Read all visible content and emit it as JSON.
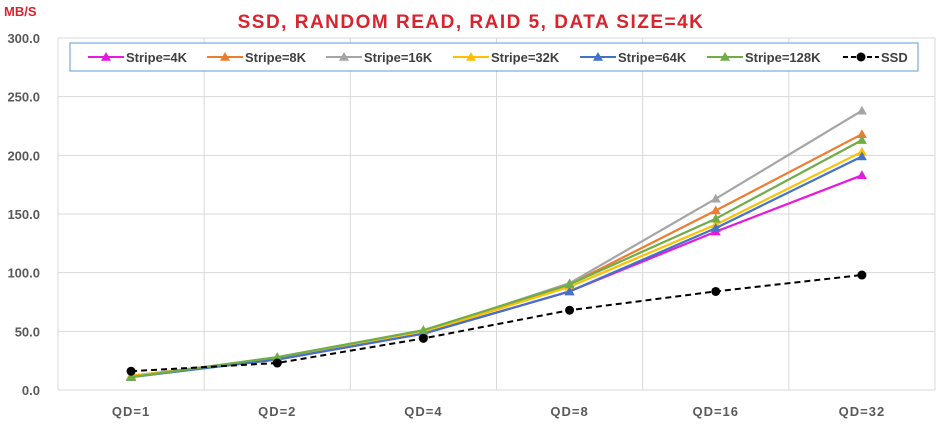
{
  "chart_data": {
    "type": "line",
    "title": "SSD, RANDOM READ, RAID 5, DATA SIZE=4K",
    "ylabel": "MB/S",
    "xlabel": "",
    "categories": [
      "QD=1",
      "QD=2",
      "QD=4",
      "QD=8",
      "QD=16",
      "QD=32"
    ],
    "ylim": [
      0,
      300
    ],
    "yticks": [
      "0.0",
      "50.0",
      "100.0",
      "150.0",
      "200.0",
      "250.0",
      "300.0"
    ],
    "grid": true,
    "legend_position": "top",
    "series": [
      {
        "name": "Stripe=4K",
        "color": "#e619e0",
        "marker": "triangle",
        "dash": false,
        "values": [
          12,
          26,
          48,
          84,
          135,
          183
        ]
      },
      {
        "name": "Stripe=8K",
        "color": "#ed7d31",
        "marker": "triangle",
        "dash": false,
        "values": [
          12,
          27,
          50,
          90,
          153,
          218
        ]
      },
      {
        "name": "Stripe=16K",
        "color": "#a5a5a5",
        "marker": "triangle",
        "dash": false,
        "values": [
          12,
          27,
          50,
          91,
          163,
          238
        ]
      },
      {
        "name": "Stripe=32K",
        "color": "#ffc000",
        "marker": "triangle",
        "dash": false,
        "values": [
          12,
          26,
          49,
          88,
          141,
          203
        ]
      },
      {
        "name": "Stripe=64K",
        "color": "#4472c4",
        "marker": "triangle",
        "dash": false,
        "values": [
          11,
          26,
          48,
          84,
          138,
          199
        ]
      },
      {
        "name": "Stripe=128K",
        "color": "#70ad47",
        "marker": "triangle",
        "dash": false,
        "values": [
          11,
          28,
          51,
          90,
          146,
          213
        ]
      },
      {
        "name": "SSD",
        "color": "#000000",
        "marker": "circle",
        "dash": true,
        "values": [
          16,
          23,
          44,
          68,
          84,
          98
        ]
      }
    ],
    "colors": {
      "title": "#d9232d",
      "axis_text": "#595959",
      "grid": "#d9d9d9",
      "legend_border": "#5b9bd5"
    }
  }
}
